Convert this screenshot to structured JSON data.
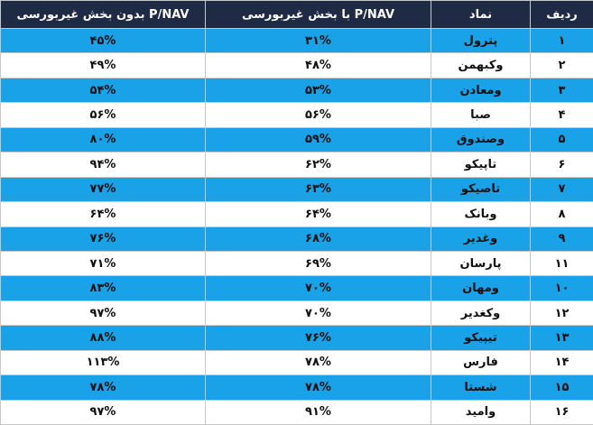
{
  "table": {
    "header": [
      "ردیف",
      "نماد",
      "P/NAV با بخش غیربورسی",
      "P/NAV بدون بخش غیربورسی"
    ],
    "rows": [
      [
        "۱",
        "پترول",
        "۳۱%",
        "۴۵%"
      ],
      [
        "۲",
        "وکبهمن",
        "۴۸%",
        "۴۹%"
      ],
      [
        "۳",
        "ومعادن",
        "۵۳%",
        "۵۴%"
      ],
      [
        "۴",
        "صبا",
        "۵۶%",
        "۵۶%"
      ],
      [
        "۵",
        "وصندوق",
        "۵۹%",
        "۸۰%"
      ],
      [
        "۶",
        "تاپیکو",
        "۶۲%",
        "۹۴%"
      ],
      [
        "۷",
        "تاصیکو",
        "۶۳%",
        "۷۷%"
      ],
      [
        "۸",
        "وبانک",
        "۶۴%",
        "۶۴%"
      ],
      [
        "۹",
        "وغدیر",
        "۶۸%",
        "۷۶%"
      ],
      [
        "۱۱",
        "پارسان",
        "۶۹%",
        "۷۱%"
      ],
      [
        "۱۰",
        "ومهان",
        "۷۰%",
        "۸۳%"
      ],
      [
        "۱۲",
        "وکغدیر",
        "۷۰%",
        "۹۷%"
      ],
      [
        "۱۳",
        "تیپیکو",
        "۷۶%",
        "۸۸%"
      ],
      [
        "۱۴",
        "فارس",
        "۷۸%",
        "۱۱۳%"
      ],
      [
        "۱۵",
        "شستا",
        "۷۸%",
        "۷۸%"
      ],
      [
        "۱۶",
        "وامید",
        "۹۱%",
        "۹۷%"
      ]
    ]
  }
}
